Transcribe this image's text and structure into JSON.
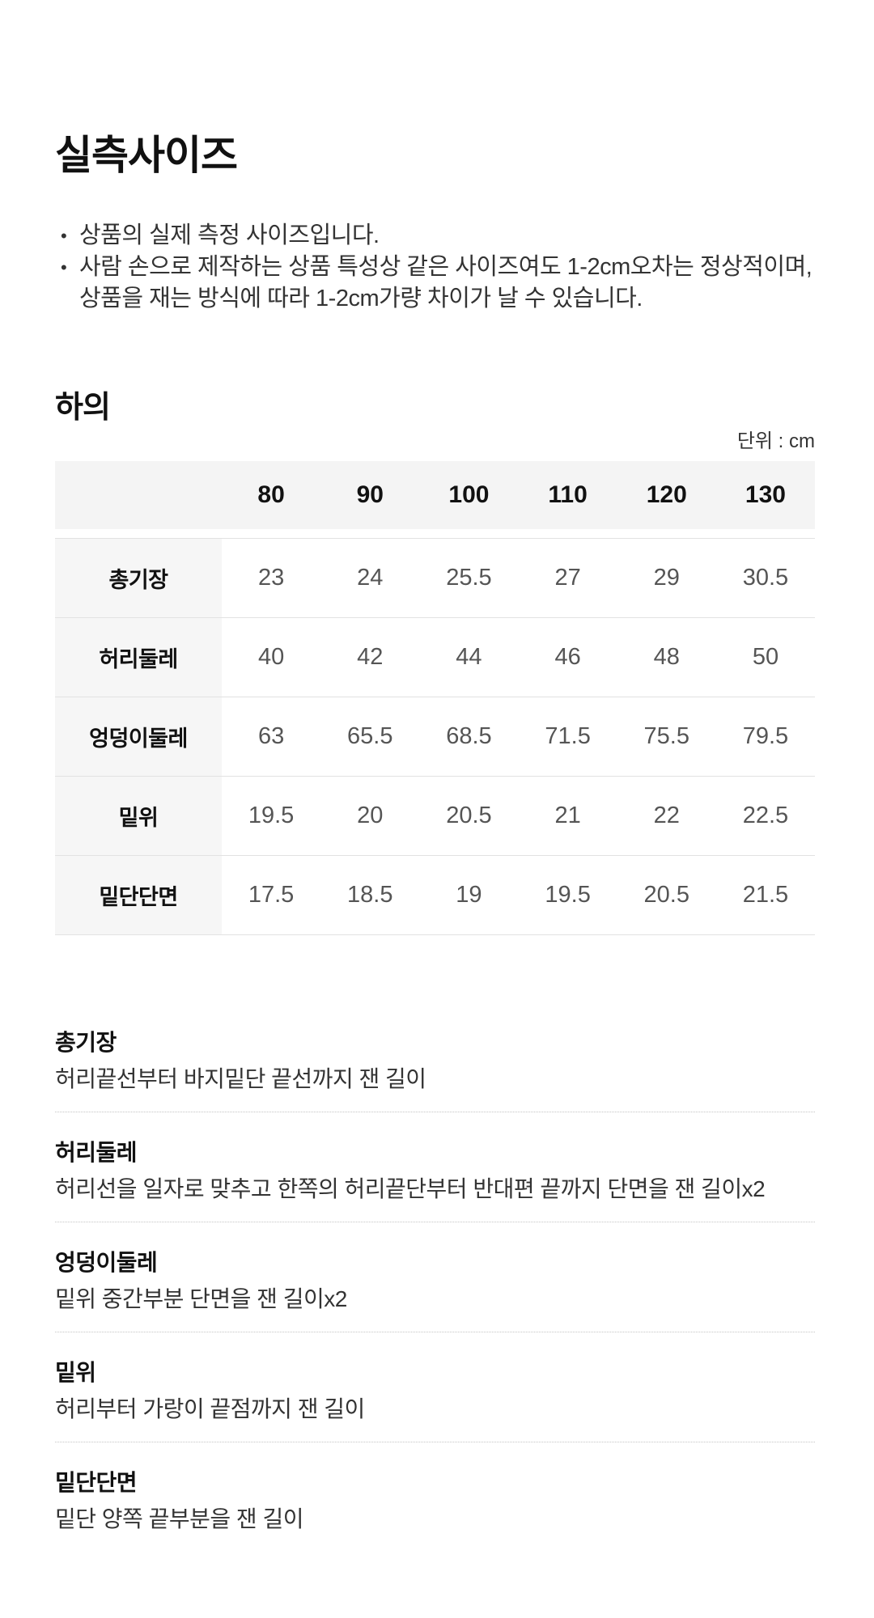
{
  "page": {
    "title": "실측사이즈",
    "bullet_char": "•",
    "notes": [
      "상품의 실제 측정 사이즈입니다.",
      "사람 손으로 제작하는 상품 특성상 같은 사이즈여도 1-2cm오차는 정상적이며, 상품을 재는 방식에 따라 1-2cm가량 차이가 날 수 있습니다."
    ],
    "section_heading": "하의",
    "unit_label": "단위 : cm"
  },
  "size_table": {
    "columns": [
      "80",
      "90",
      "100",
      "110",
      "120",
      "130"
    ],
    "rows": [
      {
        "label": "총기장",
        "values": [
          "23",
          "24",
          "25.5",
          "27",
          "29",
          "30.5"
        ]
      },
      {
        "label": "허리둘레",
        "values": [
          "40",
          "42",
          "44",
          "46",
          "48",
          "50"
        ]
      },
      {
        "label": "엉덩이둘레",
        "values": [
          "63",
          "65.5",
          "68.5",
          "71.5",
          "75.5",
          "79.5"
        ]
      },
      {
        "label": "밑위",
        "values": [
          "19.5",
          "20",
          "20.5",
          "21",
          "22",
          "22.5"
        ]
      },
      {
        "label": "밑단단면",
        "values": [
          "17.5",
          "18.5",
          "19",
          "19.5",
          "20.5",
          "21.5"
        ]
      }
    ]
  },
  "definitions": [
    {
      "term": "총기장",
      "description": "허리끝선부터 바지밑단 끝선까지 잰 길이"
    },
    {
      "term": "허리둘레",
      "description": "허리선을 일자로 맞추고 한쪽의 허리끝단부터 반대편 끝까지 단면을 잰 길이x2"
    },
    {
      "term": "엉덩이둘레",
      "description": "밑위 중간부분 단면을 잰 길이x2"
    },
    {
      "term": "밑위",
      "description": "허리부터 가랑이 끝점까지 잰 길이"
    },
    {
      "term": "밑단단면",
      "description": "밑단 양쪽 끝부분을 잰 길이"
    }
  ],
  "colors": {
    "background": "#ffffff",
    "heading_text": "#111111",
    "body_text": "#333333",
    "table_value_text": "#555555",
    "table_header_bg": "#f4f4f4",
    "table_label_bg": "#f6f6f6",
    "table_border": "#e2e2e2",
    "dotted_divider": "#c4c4c4"
  }
}
